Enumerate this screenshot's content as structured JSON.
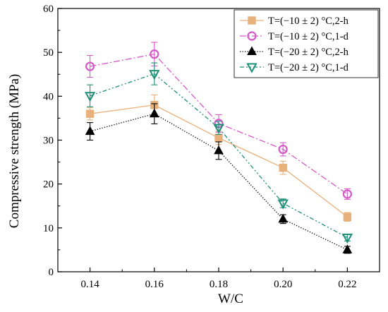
{
  "chart_data": {
    "type": "line",
    "xlabel": "W/C",
    "ylabel": "Compressive strength (MPa)",
    "xlim": [
      0.13,
      0.23
    ],
    "ylim": [
      0,
      60
    ],
    "x_ticks": [
      "0.14",
      "0.16",
      "0.18",
      "0.20",
      "0.22"
    ],
    "y_ticks": [
      "0",
      "10",
      "20",
      "30",
      "40",
      "50",
      "60"
    ],
    "x": [
      0.14,
      0.16,
      0.18,
      0.2,
      0.22
    ],
    "grid": false,
    "legend_position": "top-right",
    "series": [
      {
        "name": "T=(−10 ± 2) °C,2-h",
        "values": [
          36.0,
          38.0,
          30.5,
          23.7,
          12.5
        ],
        "errors": [
          1.4,
          2.3,
          1.5,
          1.5,
          1.0
        ],
        "color": "#e8b07a",
        "marker": "square",
        "line": "solid"
      },
      {
        "name": "T=(−10 ± 2) °C,1-d",
        "values": [
          46.8,
          49.6,
          33.8,
          27.9,
          17.7
        ],
        "errors": [
          2.5,
          2.7,
          2.0,
          1.5,
          1.2
        ],
        "color": "#d659c8",
        "marker": "circle-open",
        "line": "dashdot"
      },
      {
        "name": "T=(−20 ± 2) °C,2-h",
        "values": [
          32.0,
          36.0,
          27.6,
          12.0,
          5.0
        ],
        "errors": [
          2.0,
          2.3,
          2.0,
          1.0,
          0.8
        ],
        "color": "#000000",
        "marker": "triangle-up",
        "line": "dotted"
      },
      {
        "name": "T=(−20 ± 2) °C,1-d",
        "values": [
          40.1,
          45.1,
          32.8,
          15.6,
          7.8
        ],
        "errors": [
          2.5,
          2.5,
          1.5,
          1.0,
          0.8
        ],
        "color": "#1f8f78",
        "marker": "triangle-down-open",
        "line": "dashdotdot"
      }
    ]
  }
}
